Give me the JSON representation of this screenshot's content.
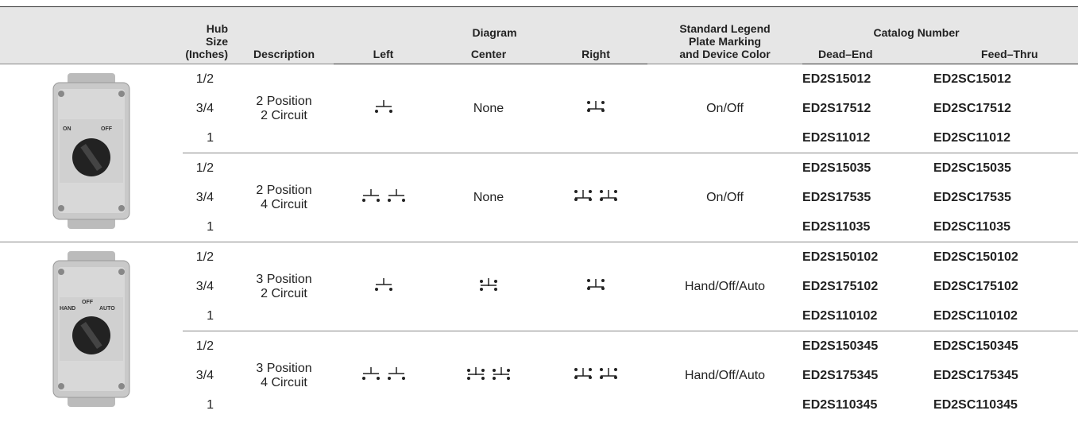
{
  "header": {
    "hub_size": [
      "Hub Size",
      "(Inches)"
    ],
    "description": "Description",
    "diagram": "Diagram",
    "left": "Left",
    "center": "Center",
    "right": "Right",
    "legend": [
      "Standard Legend",
      "Plate Marking",
      "and Device Color"
    ],
    "catalog_number": "Catalog Number",
    "dead_end": "Dead–End",
    "feed_thru": "Feed–Thru"
  },
  "groups": [
    {
      "image_labels": [
        "ON",
        "OFF"
      ],
      "subgroups": [
        {
          "description": [
            "2 Position",
            "2 Circuit"
          ],
          "center": "None",
          "legend": "On/Off",
          "rows": [
            {
              "hub": "1/2",
              "dead_end": "ED2S15012",
              "feed_thru": "ED2SC15012"
            },
            {
              "hub": "3/4",
              "dead_end": "ED2S17512",
              "feed_thru": "ED2SC17512"
            },
            {
              "hub": "1",
              "dead_end": "ED2S11012",
              "feed_thru": "ED2SC11012"
            }
          ]
        },
        {
          "description": [
            "2 Position",
            "4 Circuit"
          ],
          "center": "None",
          "legend": "On/Off",
          "rows": [
            {
              "hub": "1/2",
              "dead_end": "ED2S15035",
              "feed_thru": "ED2SC15035"
            },
            {
              "hub": "3/4",
              "dead_end": "ED2S17535",
              "feed_thru": "ED2SC17535"
            },
            {
              "hub": "1",
              "dead_end": "ED2S11035",
              "feed_thru": "ED2SC11035"
            }
          ]
        }
      ]
    },
    {
      "image_labels": [
        "OFF",
        "HAND",
        "AUTO"
      ],
      "subgroups": [
        {
          "description": [
            "3 Position",
            "2 Circuit"
          ],
          "legend": "Hand/Off/Auto",
          "rows": [
            {
              "hub": "1/2",
              "dead_end": "ED2S150102",
              "feed_thru": "ED2SC150102"
            },
            {
              "hub": "3/4",
              "dead_end": "ED2S175102",
              "feed_thru": "ED2SC175102"
            },
            {
              "hub": "1",
              "dead_end": "ED2S110102",
              "feed_thru": "ED2SC110102"
            }
          ]
        },
        {
          "description": [
            "3 Position",
            "4 Circuit"
          ],
          "legend": "Hand/Off/Auto",
          "rows": [
            {
              "hub": "1/2",
              "dead_end": "ED2S150345",
              "feed_thru": "ED2SC150345"
            },
            {
              "hub": "3/4",
              "dead_end": "ED2S175345",
              "feed_thru": "ED2SC175345"
            },
            {
              "hub": "1",
              "dead_end": "ED2S110345",
              "feed_thru": "ED2SC110345"
            }
          ]
        }
      ]
    }
  ]
}
